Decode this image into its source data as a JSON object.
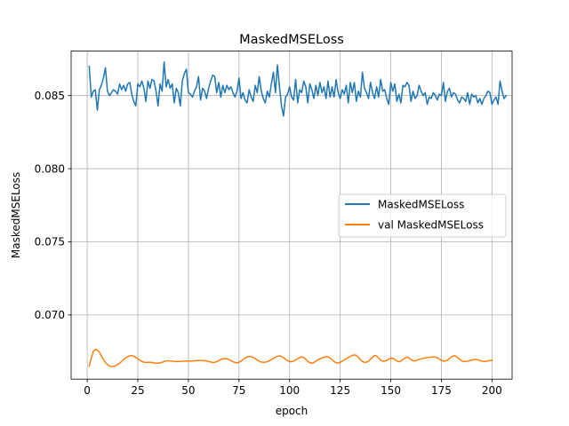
{
  "chart_data": {
    "type": "line",
    "title": "MaskedMSELoss",
    "xlabel": "epoch",
    "ylabel": "MaskedMSELoss",
    "xlim": [
      -7.95,
      209.95
    ],
    "ylim": [
      0.06561,
      0.08804
    ],
    "xticks": [
      0,
      25,
      50,
      75,
      100,
      125,
      150,
      175,
      200
    ],
    "xtick_labels": [
      "0",
      "25",
      "50",
      "75",
      "100",
      "125",
      "150",
      "175",
      "200"
    ],
    "yticks": [
      0.07,
      0.075,
      0.08,
      0.085
    ],
    "ytick_labels": [
      "0.070",
      "0.075",
      "0.080",
      "0.085"
    ],
    "grid": true,
    "legend_position": "center-right",
    "series": [
      {
        "name": "MaskedMSELoss",
        "color": "#1f77b4",
        "x_start": 1,
        "x_step": 1,
        "values": [
          0.087,
          0.0849,
          0.0853,
          0.0854,
          0.084,
          0.0854,
          0.0857,
          0.0862,
          0.0869,
          0.0853,
          0.085,
          0.0852,
          0.0854,
          0.0853,
          0.0851,
          0.0858,
          0.0854,
          0.0857,
          0.0853,
          0.0858,
          0.0859,
          0.0851,
          0.0846,
          0.0843,
          0.0858,
          0.0856,
          0.086,
          0.0855,
          0.0846,
          0.086,
          0.0855,
          0.0861,
          0.086,
          0.0853,
          0.0843,
          0.0858,
          0.0853,
          0.0873,
          0.0856,
          0.0861,
          0.0855,
          0.0858,
          0.0845,
          0.0855,
          0.0852,
          0.0843,
          0.086,
          0.0865,
          0.0868,
          0.0852,
          0.0851,
          0.0849,
          0.0853,
          0.0856,
          0.0863,
          0.0847,
          0.0855,
          0.0853,
          0.0848,
          0.0855,
          0.086,
          0.0864,
          0.0863,
          0.0852,
          0.0859,
          0.0849,
          0.0857,
          0.0852,
          0.0857,
          0.0854,
          0.0856,
          0.0852,
          0.0849,
          0.0853,
          0.0862,
          0.0848,
          0.0852,
          0.0847,
          0.0845,
          0.0854,
          0.0849,
          0.0846,
          0.0857,
          0.0852,
          0.0863,
          0.0853,
          0.0848,
          0.0845,
          0.0853,
          0.0849,
          0.0858,
          0.0866,
          0.0852,
          0.0871,
          0.0856,
          0.0843,
          0.0836,
          0.0849,
          0.0851,
          0.0856,
          0.0849,
          0.0847,
          0.0861,
          0.0845,
          0.0854,
          0.0852,
          0.086,
          0.0856,
          0.0845,
          0.0858,
          0.0854,
          0.0848,
          0.0857,
          0.085,
          0.0859,
          0.0852,
          0.0856,
          0.0848,
          0.086,
          0.0849,
          0.0856,
          0.0849,
          0.0861,
          0.0852,
          0.0848,
          0.0854,
          0.0851,
          0.0857,
          0.0845,
          0.0859,
          0.0852,
          0.0859,
          0.0846,
          0.0853,
          0.0849,
          0.0866,
          0.0855,
          0.0852,
          0.0848,
          0.0859,
          0.0852,
          0.0848,
          0.0856,
          0.0849,
          0.0861,
          0.0853,
          0.0854,
          0.0848,
          0.0844,
          0.0859,
          0.0853,
          0.0858,
          0.0846,
          0.0851,
          0.0845,
          0.0857,
          0.0856,
          0.0859,
          0.0857,
          0.0846,
          0.0853,
          0.0848,
          0.085,
          0.0857,
          0.0853,
          0.085,
          0.0852,
          0.0844,
          0.0849,
          0.0848,
          0.0852,
          0.085,
          0.0847,
          0.0851,
          0.085,
          0.0859,
          0.0846,
          0.0853,
          0.0855,
          0.0849,
          0.0852,
          0.0851,
          0.0847,
          0.0845,
          0.0849,
          0.0848,
          0.0846,
          0.0852,
          0.0844,
          0.0851,
          0.0849,
          0.085,
          0.0845,
          0.0848,
          0.0844,
          0.0848,
          0.085,
          0.0853,
          0.0852,
          0.0844,
          0.0847,
          0.0849,
          0.0844,
          0.086,
          0.0853,
          0.0848,
          0.085
        ]
      },
      {
        "name": "val MaskedMSELoss",
        "color": "#ff7f0e",
        "x_start": 1,
        "x_step": 1,
        "values": [
          0.0665,
          0.06705,
          0.0675,
          0.06765,
          0.0676,
          0.06745,
          0.0672,
          0.06695,
          0.06675,
          0.0666,
          0.0665,
          0.06648,
          0.06648,
          0.06652,
          0.0666,
          0.0667,
          0.06682,
          0.06695,
          0.06707,
          0.06715,
          0.0672,
          0.06722,
          0.06718,
          0.0671,
          0.067,
          0.0669,
          0.06682,
          0.06677,
          0.06675,
          0.06676,
          0.06676,
          0.06675,
          0.06672,
          0.0667,
          0.0667,
          0.06672,
          0.06676,
          0.06681,
          0.06685,
          0.06687,
          0.06686,
          0.06684,
          0.06682,
          0.06681,
          0.06681,
          0.06682,
          0.06683,
          0.06684,
          0.06684,
          0.06684,
          0.06684,
          0.06685,
          0.06686,
          0.06688,
          0.06689,
          0.06689,
          0.06688,
          0.06687,
          0.06685,
          0.06682,
          0.06678,
          0.06675,
          0.06676,
          0.06681,
          0.06688,
          0.06695,
          0.067,
          0.06702,
          0.067,
          0.06695,
          0.06688,
          0.06681,
          0.06675,
          0.06673,
          0.06676,
          0.06684,
          0.06695,
          0.06706,
          0.06713,
          0.06716,
          0.06715,
          0.0671,
          0.06701,
          0.06691,
          0.06683,
          0.06678,
          0.06676,
          0.06677,
          0.06681,
          0.06687,
          0.06695,
          0.06703,
          0.06711,
          0.06717,
          0.06719,
          0.06716,
          0.06708,
          0.06697,
          0.06687,
          0.06681,
          0.0668,
          0.06684,
          0.06692,
          0.06701,
          0.06709,
          0.06713,
          0.06709,
          0.06697,
          0.06683,
          0.06673,
          0.0667,
          0.06675,
          0.06684,
          0.06693,
          0.067,
          0.06706,
          0.06711,
          0.06714,
          0.06713,
          0.06706,
          0.06694,
          0.06681,
          0.06673,
          0.06671,
          0.06676,
          0.06684,
          0.06693,
          0.067,
          0.06708,
          0.06716,
          0.06723,
          0.06727,
          0.06723,
          0.0671,
          0.06694,
          0.06682,
          0.06676,
          0.06677,
          0.06684,
          0.06697,
          0.06712,
          0.06722,
          0.06719,
          0.06705,
          0.06691,
          0.06684,
          0.06684,
          0.06689,
          0.06697,
          0.06703,
          0.06704,
          0.06696,
          0.06685,
          0.0668,
          0.06684,
          0.06695,
          0.06706,
          0.06711,
          0.06706,
          0.06695,
          0.06687,
          0.06686,
          0.0669,
          0.06696,
          0.067,
          0.06704,
          0.06706,
          0.06708,
          0.0671,
          0.06712,
          0.06713,
          0.06712,
          0.06707,
          0.06698,
          0.06689,
          0.06684,
          0.06685,
          0.06692,
          0.06702,
          0.06713,
          0.0672,
          0.06719,
          0.0671,
          0.06697,
          0.06686,
          0.06681,
          0.06681,
          0.06684,
          0.06688,
          0.06692,
          0.06695,
          0.06696,
          0.06693,
          0.06688,
          0.06684,
          0.06682,
          0.06683,
          0.06685,
          0.06688,
          0.0669
        ]
      }
    ]
  }
}
